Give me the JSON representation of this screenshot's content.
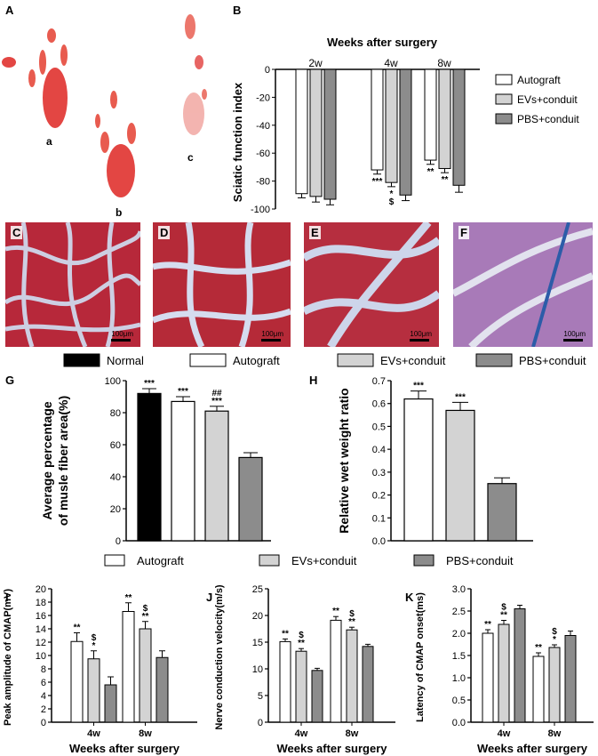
{
  "panel_labels": {
    "A": "A",
    "B": "B",
    "C": "C",
    "D": "D",
    "E": "E",
    "F": "F",
    "G": "G",
    "H": "H",
    "I": "I",
    "J": "J",
    "K": "K"
  },
  "footprints": {
    "a": "a",
    "b": "b",
    "c": "c"
  },
  "scale_bar": "100μm",
  "legend_top": [
    "Normal",
    "Autograft",
    "EVs+conduit",
    "PBS+conduit"
  ],
  "legend_mid": [
    "Autograft",
    "EVs+conduit",
    "PBS+conduit"
  ],
  "colors": {
    "normal": "#000000",
    "autograft": "#ffffff",
    "evs": "#d3d3d3",
    "pbs": "#8c8c8c"
  },
  "chart_data": [
    {
      "panel": "B",
      "type": "bar",
      "title": "Weeks after surgery",
      "ylabel": "Sciatic function index",
      "categories": [
        "2w",
        "4w",
        "8w"
      ],
      "ylim": [
        -100,
        0
      ],
      "yticks": [
        0,
        -20,
        -40,
        -60,
        -80,
        -100
      ],
      "series": [
        {
          "name": "Autograft",
          "values": [
            -89,
            -72,
            -65
          ],
          "errors": [
            3,
            3,
            3
          ],
          "annotations": [
            "",
            "***",
            "**"
          ]
        },
        {
          "name": "EVs+conduit",
          "values": [
            -91,
            -81,
            -71
          ],
          "errors": [
            4,
            3,
            3
          ],
          "annotations": [
            "",
            "*\n$",
            "**"
          ]
        },
        {
          "name": "PBS+conduit",
          "values": [
            -93,
            -90,
            -83
          ],
          "errors": [
            4,
            4,
            5
          ],
          "annotations": [
            "",
            "",
            ""
          ]
        }
      ]
    },
    {
      "panel": "G",
      "type": "bar",
      "ylabel": "Average percentage\nof musle fiber area(%)",
      "categories": [
        "Normal",
        "Autograft",
        "EVs+conduit",
        "PBS+conduit"
      ],
      "values": [
        92,
        87,
        81,
        52
      ],
      "errors": [
        3,
        3,
        3,
        3
      ],
      "annotations": [
        "***",
        "***",
        "##\n***",
        ""
      ],
      "ylim": [
        0,
        100
      ],
      "yticks": [
        0,
        20,
        40,
        60,
        80,
        100
      ]
    },
    {
      "panel": "H",
      "type": "bar",
      "ylabel": "Relative wet weight ratio",
      "categories": [
        "Autograft",
        "EVs+conduit",
        "PBS+conduit"
      ],
      "values": [
        0.62,
        0.57,
        0.25
      ],
      "errors": [
        0.035,
        0.035,
        0.025
      ],
      "annotations": [
        "***",
        "***",
        ""
      ],
      "ylim": [
        0,
        0.7
      ],
      "yticks": [
        0.0,
        0.1,
        0.2,
        0.3,
        0.4,
        0.5,
        0.6,
        0.7
      ]
    },
    {
      "panel": "I",
      "type": "bar",
      "xlabel": "Weeks after surgery",
      "ylabel": "Peak amplitude of CMAP(mV)",
      "categories": [
        "4w",
        "8w"
      ],
      "ylim": [
        0,
        20
      ],
      "yticks": [
        0,
        2,
        4,
        6,
        8,
        10,
        12,
        14,
        16,
        18,
        20
      ],
      "series": [
        {
          "name": "Autograft",
          "values": [
            12.1,
            16.6
          ],
          "errors": [
            1.3,
            1.3
          ],
          "annotations": [
            "**",
            "**"
          ]
        },
        {
          "name": "EVs+conduit",
          "values": [
            9.5,
            14.0
          ],
          "errors": [
            1.2,
            1.1
          ],
          "annotations": [
            "$\n*",
            "$\n**"
          ]
        },
        {
          "name": "PBS+conduit",
          "values": [
            5.6,
            9.7
          ],
          "errors": [
            1.2,
            1.0
          ],
          "annotations": [
            "",
            ""
          ]
        }
      ]
    },
    {
      "panel": "J",
      "type": "bar",
      "xlabel": "Weeks after surgery",
      "ylabel": "Nerve conduction velocity(m/s)",
      "categories": [
        "4w",
        "8w"
      ],
      "ylim": [
        0,
        25
      ],
      "yticks": [
        0,
        5,
        10,
        15,
        20,
        25
      ],
      "series": [
        {
          "name": "Autograft",
          "values": [
            15.1,
            19.1
          ],
          "errors": [
            0.5,
            0.7
          ],
          "annotations": [
            "**",
            "**"
          ]
        },
        {
          "name": "EVs+conduit",
          "values": [
            13.3,
            17.3
          ],
          "errors": [
            0.5,
            0.5
          ],
          "annotations": [
            "$\n**",
            "$\n**"
          ]
        },
        {
          "name": "PBS+conduit",
          "values": [
            9.7,
            14.2
          ],
          "errors": [
            0.4,
            0.4
          ],
          "annotations": [
            "",
            ""
          ]
        }
      ]
    },
    {
      "panel": "K",
      "type": "bar",
      "xlabel": "Weeks after surgery",
      "ylabel": "Latency of CMAP onset(ms)",
      "categories": [
        "4w",
        "8w"
      ],
      "ylim": [
        0,
        3.0
      ],
      "yticks": [
        0.0,
        0.5,
        1.0,
        1.5,
        2.0,
        2.5,
        3.0
      ],
      "series": [
        {
          "name": "Autograft",
          "values": [
            2.0,
            1.48
          ],
          "errors": [
            0.08,
            0.08
          ],
          "annotations": [
            "**",
            "**"
          ]
        },
        {
          "name": "EVs+conduit",
          "values": [
            2.2,
            1.68
          ],
          "errors": [
            0.09,
            0.06
          ],
          "annotations": [
            "$\n**",
            "$\n*"
          ]
        },
        {
          "name": "PBS+conduit",
          "values": [
            2.55,
            1.95
          ],
          "errors": [
            0.08,
            0.1
          ],
          "annotations": [
            "",
            ""
          ]
        }
      ]
    }
  ]
}
